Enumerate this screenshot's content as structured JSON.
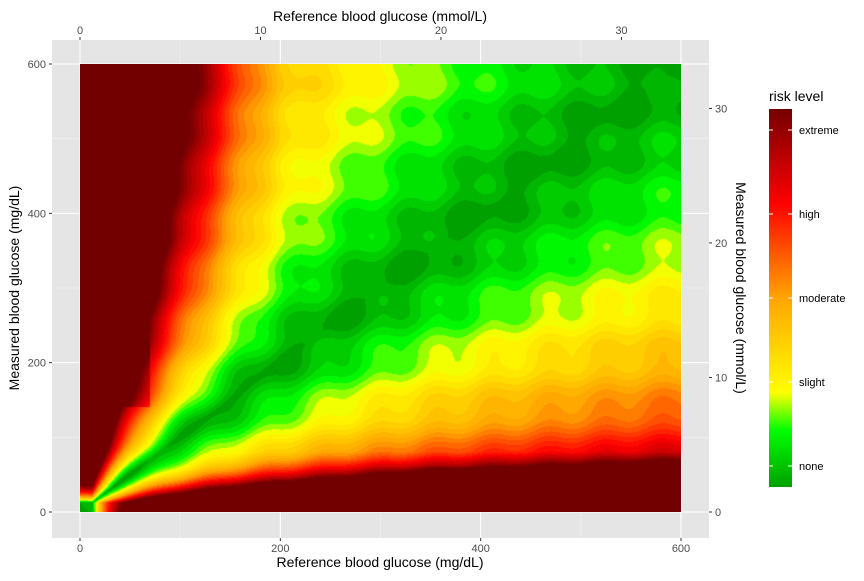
{
  "chart_data": {
    "type": "heatmap",
    "title": "",
    "xlabel_bottom": "Reference blood glucose (mg/dL)",
    "xlabel_top": "Reference blood glucose (mmol/L)",
    "ylabel_left": "Measured blood glucose (mg/dL)",
    "ylabel_right": "Measured blood glucose (mmol/L)",
    "xlim_mgdl": [
      0,
      600
    ],
    "ylim_mgdl": [
      0,
      600
    ],
    "x_ticks_mgdl": [
      0,
      200,
      400,
      600
    ],
    "y_ticks_mgdl": [
      0,
      200,
      400,
      600
    ],
    "x_ticks_mmol": [
      0,
      10,
      20,
      30
    ],
    "y_ticks_mmol": [
      0,
      10,
      20,
      30
    ],
    "mmol_per_mgdl": 0.0555,
    "grid": true,
    "panel_background": "#e5e5e5",
    "legend": {
      "title": "risk level",
      "placement": "right",
      "labels": [
        "none",
        "slight",
        "moderate",
        "high",
        "extreme"
      ],
      "range": [
        0,
        4
      ],
      "colors": [
        "#00a000",
        "#00ff00",
        "#ffff00",
        "#ffa500",
        "#ff0000",
        "#b40000",
        "#730000"
      ],
      "color_stops": [
        0,
        0.6,
        1,
        2,
        3,
        3.55,
        4
      ]
    }
  }
}
